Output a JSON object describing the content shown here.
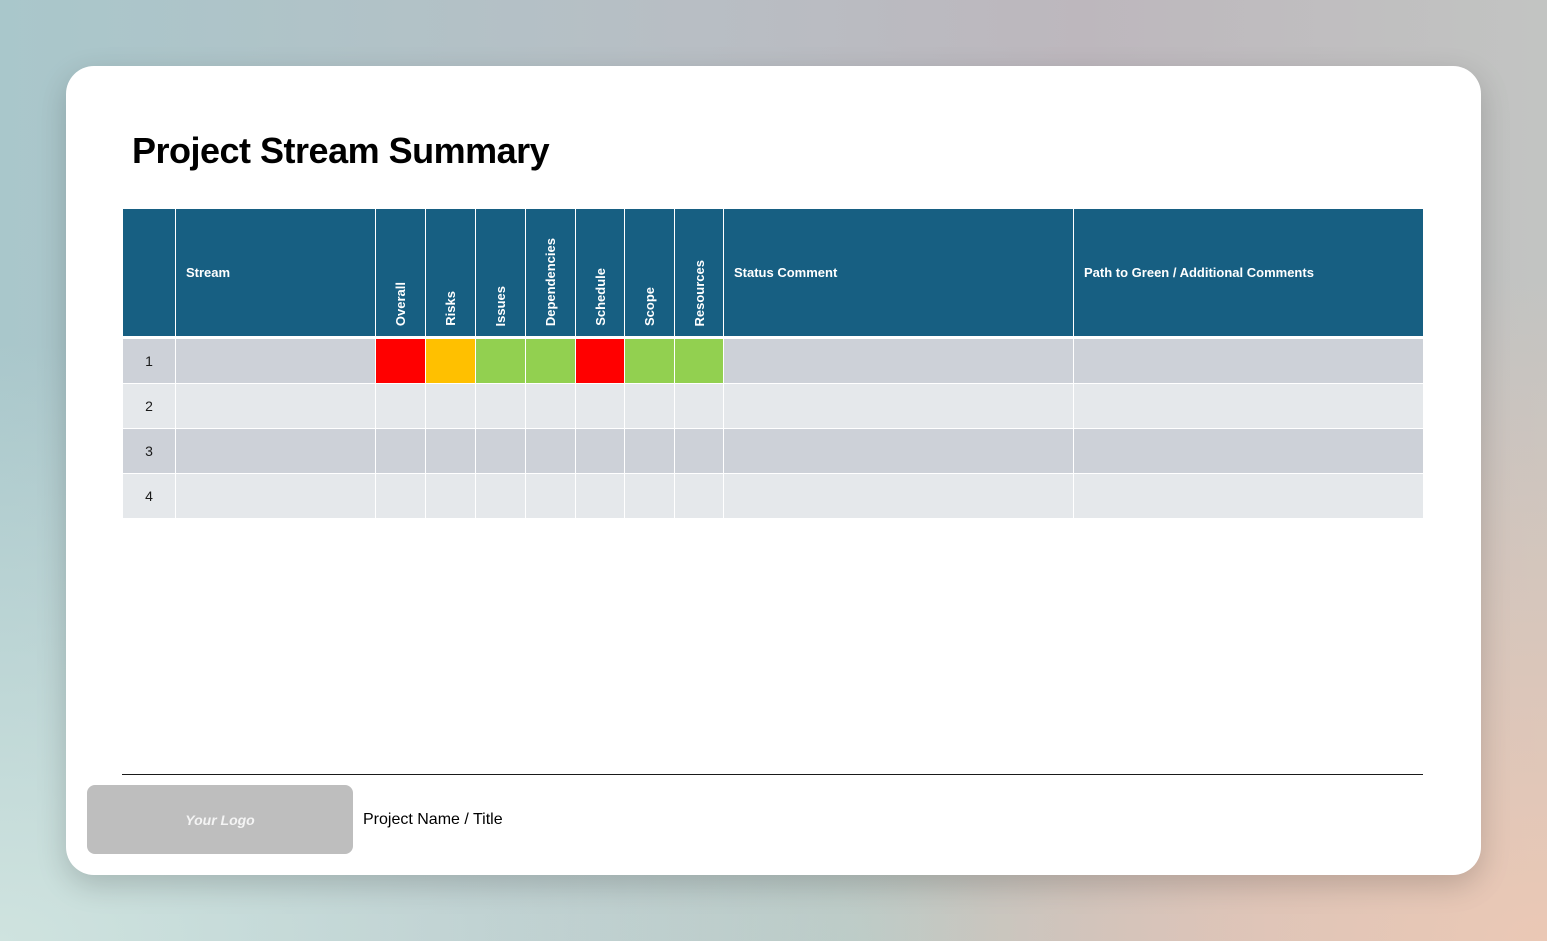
{
  "title": "Project Stream Summary",
  "colors": {
    "header_bg": "#175f82",
    "red": "#ff0000",
    "amber": "#ffc000",
    "green": "#92d050",
    "row_odd": "#cdd1d8",
    "row_even": "#e5e8eb"
  },
  "table": {
    "headers": {
      "number": "",
      "stream": "Stream",
      "overall": "Overall",
      "risks": "Risks",
      "issues": "Issues",
      "dependencies": "Dependencies",
      "schedule": "Schedule",
      "scope": "Scope",
      "resources": "Resources",
      "status_comment": "Status Comment",
      "path_to_green": "Path to Green / Additional Comments"
    },
    "rows": [
      {
        "number": "1",
        "stream": "",
        "statuses": {
          "overall": "red",
          "risks": "amber",
          "issues": "green",
          "dependencies": "green",
          "schedule": "red",
          "scope": "green",
          "resources": "green"
        },
        "status_comment": "",
        "path_to_green": ""
      },
      {
        "number": "2",
        "stream": "",
        "statuses": {
          "overall": "",
          "risks": "",
          "issues": "",
          "dependencies": "",
          "schedule": "",
          "scope": "",
          "resources": ""
        },
        "status_comment": "",
        "path_to_green": ""
      },
      {
        "number": "3",
        "stream": "",
        "statuses": {
          "overall": "",
          "risks": "",
          "issues": "",
          "dependencies": "",
          "schedule": "",
          "scope": "",
          "resources": ""
        },
        "status_comment": "",
        "path_to_green": ""
      },
      {
        "number": "4",
        "stream": "",
        "statuses": {
          "overall": "",
          "risks": "",
          "issues": "",
          "dependencies": "",
          "schedule": "",
          "scope": "",
          "resources": ""
        },
        "status_comment": "",
        "path_to_green": ""
      }
    ]
  },
  "footer": {
    "logo_text": "Your Logo",
    "project_name": "Project Name / Title"
  }
}
